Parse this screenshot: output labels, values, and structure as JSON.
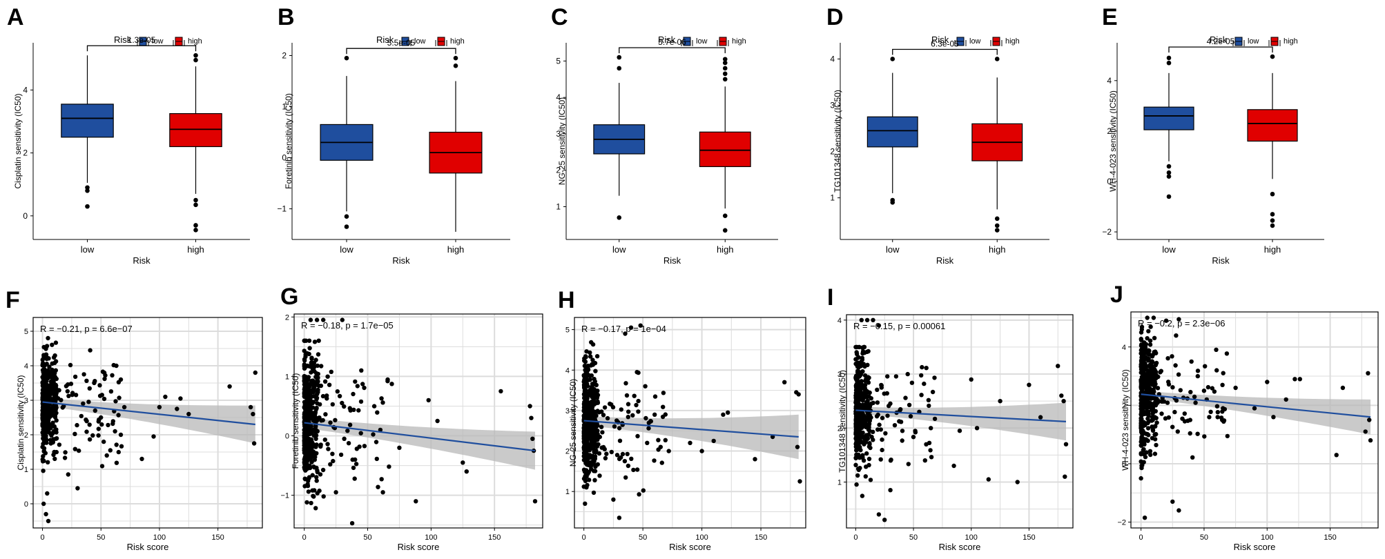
{
  "colors": {
    "low": "#1f4e9e",
    "high": "#e00000",
    "point": "#000000",
    "line": "#1f4e9e",
    "band": "#b8b8b8",
    "grid": "#dcdcdc"
  },
  "chart_data": [
    {
      "panel": "A",
      "type": "box",
      "legend_title": "Risk",
      "legend": [
        "low",
        "high"
      ],
      "xlabel": "Risk",
      "ylabel": "Cisplatin sensitivity (IC50)",
      "categories": [
        "low",
        "high"
      ],
      "ylim": [
        -0.75,
        5.5
      ],
      "yticks": [
        0,
        2,
        4
      ],
      "pvalue": "1.3e-05",
      "boxes": [
        {
          "name": "low",
          "q1": 2.5,
          "median": 3.1,
          "q3": 3.55,
          "lower": 1.05,
          "upper": 5.1,
          "outliers": [
            0.9,
            0.8,
            0.3
          ]
        },
        {
          "name": "high",
          "q1": 2.2,
          "median": 2.75,
          "q3": 3.25,
          "lower": 0.7,
          "upper": 4.75,
          "outliers": [
            4.95,
            5.1,
            0.5,
            0.35,
            -0.3,
            -0.45
          ]
        }
      ]
    },
    {
      "panel": "B",
      "type": "box",
      "legend_title": "Risk",
      "legend": [
        "low",
        "high"
      ],
      "xlabel": "Risk",
      "ylabel": "Foretinib sensitivity (IC50)",
      "categories": [
        "low",
        "high"
      ],
      "ylim": [
        -1.6,
        2.25
      ],
      "yticks": [
        -1,
        0,
        1,
        2
      ],
      "pvalue": "5.5e-05",
      "boxes": [
        {
          "name": "low",
          "q1": -0.05,
          "median": 0.3,
          "q3": 0.65,
          "lower": -1.05,
          "upper": 1.6,
          "outliers": [
            1.95,
            -1.15,
            -1.35
          ]
        },
        {
          "name": "high",
          "q1": -0.3,
          "median": 0.1,
          "q3": 0.5,
          "lower": -1.45,
          "upper": 1.5,
          "outliers": [
            1.95,
            1.8
          ]
        }
      ]
    },
    {
      "panel": "C",
      "type": "box",
      "legend_title": "Risk",
      "legend": [
        "low",
        "high"
      ],
      "xlabel": "Risk",
      "ylabel": "NG-25 sensitivity (IC50)",
      "categories": [
        "low",
        "high"
      ],
      "ylim": [
        0.1,
        5.5
      ],
      "yticks": [
        1,
        2,
        3,
        4,
        5
      ],
      "pvalue": "5.7e-06",
      "boxes": [
        {
          "name": "low",
          "q1": 2.45,
          "median": 2.85,
          "q3": 3.25,
          "lower": 1.3,
          "upper": 4.4,
          "outliers": [
            4.8,
            5.1,
            0.7
          ]
        },
        {
          "name": "high",
          "q1": 2.1,
          "median": 2.55,
          "q3": 3.05,
          "lower": 0.95,
          "upper": 4.3,
          "outliers": [
            4.5,
            4.65,
            4.8,
            4.95,
            5.05,
            0.75,
            0.35
          ]
        }
      ]
    },
    {
      "panel": "D",
      "type": "box",
      "legend_title": "Risk",
      "legend": [
        "low",
        "high"
      ],
      "xlabel": "Risk",
      "ylabel": "TG101348 sensitivity (IC50)",
      "categories": [
        "low",
        "high"
      ],
      "ylim": [
        0.1,
        4.35
      ],
      "yticks": [
        1,
        2,
        3,
        4
      ],
      "pvalue": "6.3e-05",
      "boxes": [
        {
          "name": "low",
          "q1": 2.1,
          "median": 2.45,
          "q3": 2.75,
          "lower": 1.1,
          "upper": 3.7,
          "outliers": [
            4.0,
            0.95,
            0.9
          ]
        },
        {
          "name": "high",
          "q1": 1.8,
          "median": 2.2,
          "q3": 2.6,
          "lower": 0.75,
          "upper": 3.6,
          "outliers": [
            4.0,
            0.55,
            0.4,
            0.3
          ]
        }
      ]
    },
    {
      "panel": "E",
      "type": "box",
      "legend_title": "Risk",
      "legend": [
        "low",
        "high"
      ],
      "xlabel": "Risk",
      "ylabel": "WH-4-023 sensitivity (IC50)",
      "categories": [
        "low",
        "high"
      ],
      "ylim": [
        -2.3,
        5.5
      ],
      "yticks": [
        -2,
        0,
        2,
        4
      ],
      "pvalue": "4.2e-05",
      "boxes": [
        {
          "name": "low",
          "q1": 2.05,
          "median": 2.6,
          "q3": 2.95,
          "lower": 0.8,
          "upper": 4.3,
          "outliers": [
            4.7,
            4.9,
            0.6,
            0.35,
            0.2,
            -0.6
          ]
        },
        {
          "name": "high",
          "q1": 1.6,
          "median": 2.3,
          "q3": 2.85,
          "lower": 0.1,
          "upper": 4.3,
          "outliers": [
            4.95,
            -0.5,
            -1.3,
            -1.55,
            -1.75
          ]
        }
      ]
    },
    {
      "panel": "F",
      "type": "scatter",
      "xlabel": "Risk score",
      "ylabel": "Cisplatin sensitivity (IC50)",
      "xlim": [
        -8,
        188
      ],
      "ylim": [
        -0.7,
        5.4
      ],
      "xticks": [
        0,
        50,
        100,
        150
      ],
      "yticks": [
        0,
        1,
        2,
        3,
        4,
        5
      ],
      "annotation": "R = −0.21, p = 6.6e−07",
      "fit": {
        "x0": 0,
        "y0": 2.95,
        "x1": 182,
        "y1": 2.3,
        "band0": 0.12,
        "band1": 0.55
      },
      "seed": 11,
      "cloud": {
        "n": 380,
        "xmax": 12,
        "center": 2.9,
        "sd": 0.75,
        "min": 0.3,
        "max": 4.8
      },
      "mid": {
        "n": 70,
        "xmin": 12,
        "xmax": 70,
        "center": 2.7,
        "sd": 0.7
      },
      "points": [
        [
          45,
          2.7
        ],
        [
          50,
          2.5
        ],
        [
          55,
          1.4
        ],
        [
          58,
          1.55
        ],
        [
          62,
          2.1
        ],
        [
          67,
          3.6
        ],
        [
          67,
          2.0
        ],
        [
          70,
          2.8
        ],
        [
          85,
          1.3
        ],
        [
          95,
          1.95
        ],
        [
          100,
          2.8
        ],
        [
          105,
          3.1
        ],
        [
          115,
          2.75
        ],
        [
          118,
          3.05
        ],
        [
          125,
          2.6
        ],
        [
          160,
          3.4
        ],
        [
          178,
          2.8
        ],
        [
          180,
          2.6
        ],
        [
          181,
          1.75
        ],
        [
          182,
          3.8
        ],
        [
          30,
          0.45
        ],
        [
          22,
          0.85
        ],
        [
          3,
          -0.3
        ],
        [
          5,
          -0.5
        ],
        [
          1,
          0.0
        ],
        [
          4,
          0.3
        ]
      ]
    },
    {
      "panel": "G",
      "type": "scatter",
      "xlabel": "Risk score",
      "ylabel": "Foretinib sensitivity (IC50)",
      "xlim": [
        -8,
        188
      ],
      "ylim": [
        -1.55,
        2.05
      ],
      "xticks": [
        0,
        50,
        100,
        150
      ],
      "yticks": [
        -1,
        0,
        1,
        2
      ],
      "annotation": "R = −0.18, p = 1.7e−05",
      "fit": {
        "x0": 0,
        "y0": 0.22,
        "x1": 182,
        "y1": -0.25,
        "band0": 0.09,
        "band1": 0.32
      },
      "seed": 23,
      "cloud": {
        "n": 380,
        "xmax": 12,
        "center": 0.25,
        "sd": 0.6,
        "min": -1.4,
        "max": 1.6
      },
      "mid": {
        "n": 70,
        "xmin": 12,
        "xmax": 70,
        "center": 0.15,
        "sd": 0.55
      },
      "points": [
        [
          5,
          1.95
        ],
        [
          10,
          1.95
        ],
        [
          15,
          1.95
        ],
        [
          30,
          1.95
        ],
        [
          45,
          1.1
        ],
        [
          60,
          0.1
        ],
        [
          62,
          -0.95
        ],
        [
          75,
          -0.2
        ],
        [
          88,
          -1.1
        ],
        [
          98,
          0.6
        ],
        [
          105,
          0.25
        ],
        [
          125,
          -0.45
        ],
        [
          128,
          -0.6
        ],
        [
          155,
          0.75
        ],
        [
          178,
          0.5
        ],
        [
          179,
          0.3
        ],
        [
          180,
          -0.05
        ],
        [
          181,
          -0.25
        ],
        [
          182,
          -1.1
        ],
        [
          25,
          -0.95
        ],
        [
          40,
          -0.4
        ]
      ]
    },
    {
      "panel": "H",
      "type": "scatter",
      "xlabel": "Risk score",
      "ylabel": "NG-25 sensitivity (IC50)",
      "xlim": [
        -8,
        188
      ],
      "ylim": [
        0.1,
        5.3
      ],
      "xticks": [
        0,
        50,
        100,
        150
      ],
      "yticks": [
        1,
        2,
        3,
        4,
        5
      ],
      "annotation": "R = −0.17, p = 1e−04",
      "fit": {
        "x0": 0,
        "y0": 2.75,
        "x1": 182,
        "y1": 2.35,
        "band0": 0.12,
        "band1": 0.55
      },
      "seed": 37,
      "cloud": {
        "n": 380,
        "xmax": 12,
        "center": 2.8,
        "sd": 0.75,
        "min": 0.7,
        "max": 5.1
      },
      "mid": {
        "n": 70,
        "xmin": 12,
        "xmax": 70,
        "center": 2.6,
        "sd": 0.7
      },
      "points": [
        [
          40,
          5.05
        ],
        [
          48,
          5.1
        ],
        [
          35,
          4.9
        ],
        [
          45,
          3.95
        ],
        [
          52,
          3.6
        ],
        [
          60,
          2.9
        ],
        [
          65,
          2.1
        ],
        [
          72,
          2.0
        ],
        [
          90,
          2.2
        ],
        [
          100,
          2.0
        ],
        [
          110,
          2.25
        ],
        [
          118,
          2.9
        ],
        [
          122,
          2.95
        ],
        [
          145,
          1.8
        ],
        [
          160,
          2.35
        ],
        [
          170,
          3.7
        ],
        [
          180,
          3.45
        ],
        [
          181,
          2.1
        ],
        [
          182,
          3.4
        ],
        [
          183,
          1.25
        ],
        [
          30,
          0.35
        ],
        [
          25,
          0.8
        ]
      ]
    },
    {
      "panel": "I",
      "type": "scatter",
      "xlabel": "Risk score",
      "ylabel": "TG101348 sensitivity (IC50)",
      "xlim": [
        -8,
        188
      ],
      "ylim": [
        0.15,
        4.1
      ],
      "xticks": [
        0,
        50,
        100,
        150
      ],
      "yticks": [
        1,
        2,
        3,
        4
      ],
      "annotation": "R = −0.15, p = 0.00061",
      "fit": {
        "x0": 0,
        "y0": 2.33,
        "x1": 182,
        "y1": 2.12,
        "band0": 0.07,
        "band1": 0.35
      },
      "seed": 53,
      "cloud": {
        "n": 380,
        "xmax": 12,
        "center": 2.35,
        "sd": 0.55,
        "min": 0.55,
        "max": 3.5
      },
      "mid": {
        "n": 70,
        "xmin": 12,
        "xmax": 70,
        "center": 2.25,
        "sd": 0.5
      },
      "points": [
        [
          5,
          4.0
        ],
        [
          10,
          4.0
        ],
        [
          15,
          4.0
        ],
        [
          20,
          3.9
        ],
        [
          45,
          3.0
        ],
        [
          55,
          2.3
        ],
        [
          60,
          1.4
        ],
        [
          65,
          2.0
        ],
        [
          85,
          1.3
        ],
        [
          90,
          1.95
        ],
        [
          100,
          2.9
        ],
        [
          105,
          2.0
        ],
        [
          115,
          1.05
        ],
        [
          125,
          2.5
        ],
        [
          140,
          1.0
        ],
        [
          150,
          2.8
        ],
        [
          160,
          2.2
        ],
        [
          175,
          3.15
        ],
        [
          178,
          2.6
        ],
        [
          180,
          2.5
        ],
        [
          181,
          1.1
        ],
        [
          182,
          1.7
        ],
        [
          30,
          0.85
        ],
        [
          25,
          0.3
        ],
        [
          20,
          0.4
        ]
      ]
    },
    {
      "panel": "J",
      "type": "scatter",
      "xlabel": "Risk score",
      "ylabel": "WH-4-023 sensitivity (IC50)",
      "xlim": [
        -8,
        188
      ],
      "ylim": [
        -2.2,
        5.2
      ],
      "xticks": [
        0,
        50,
        100,
        150
      ],
      "yticks": [
        -2,
        0,
        2,
        4
      ],
      "annotation": "R = −0.2, p = 2.3e−06",
      "fit": {
        "x0": 0,
        "y0": 2.38,
        "x1": 182,
        "y1": 1.6,
        "band0": 0.13,
        "band1": 0.6
      },
      "seed": 71,
      "cloud": {
        "n": 380,
        "xmax": 12,
        "center": 2.3,
        "sd": 1.0,
        "min": -0.6,
        "max": 4.9
      },
      "mid": {
        "n": 70,
        "xmin": 12,
        "xmax": 70,
        "center": 2.1,
        "sd": 0.9
      },
      "points": [
        [
          5,
          5.0
        ],
        [
          10,
          5.0
        ],
        [
          20,
          4.9
        ],
        [
          30,
          4.95
        ],
        [
          40,
          3.5
        ],
        [
          45,
          3.0
        ],
        [
          50,
          2.5
        ],
        [
          60,
          3.2
        ],
        [
          65,
          1.9
        ],
        [
          75,
          2.6
        ],
        [
          90,
          1.9
        ],
        [
          100,
          2.8
        ],
        [
          105,
          1.6
        ],
        [
          115,
          2.2
        ],
        [
          122,
          2.9
        ],
        [
          126,
          2.9
        ],
        [
          155,
          0.3
        ],
        [
          160,
          2.6
        ],
        [
          178,
          1.1
        ],
        [
          180,
          3.1
        ],
        [
          181,
          1.5
        ],
        [
          182,
          0.8
        ],
        [
          25,
          -1.3
        ],
        [
          30,
          -1.6
        ],
        [
          3,
          -1.85
        ],
        [
          0,
          -0.5
        ]
      ]
    }
  ]
}
